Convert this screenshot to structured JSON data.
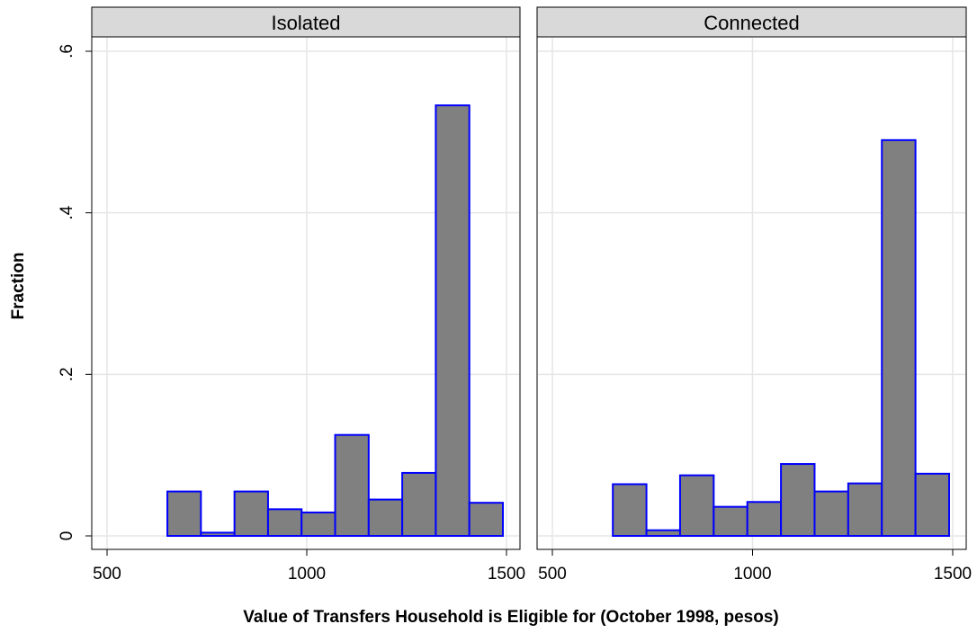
{
  "chart_data": {
    "type": "bar",
    "xlabel": "Value of Transfers Household is Eligible for (October 1998, pesos)",
    "ylabel": "Fraction",
    "xlim": [
      500,
      1500
    ],
    "ylim": [
      0,
      0.6
    ],
    "x_ticks": [
      500,
      1000,
      1500
    ],
    "y_ticks": [
      0,
      0.2,
      0.4,
      0.6
    ],
    "y_tick_labels": [
      "0",
      ".2",
      ".4",
      ".6"
    ],
    "grid": true,
    "colors": {
      "bar_fill": "#808080",
      "bar_edge": "#0000ff",
      "strip_bg": "#d9d9d9",
      "grid": "#e6e6e6"
    },
    "panels": [
      {
        "title": "Isolated",
        "bins": [
          {
            "x0": 651,
            "x1": 735,
            "value": 0.055
          },
          {
            "x0": 735,
            "x1": 819,
            "value": 0.004
          },
          {
            "x0": 819,
            "x1": 903,
            "value": 0.055
          },
          {
            "x0": 903,
            "x1": 987,
            "value": 0.033
          },
          {
            "x0": 987,
            "x1": 1071,
            "value": 0.029
          },
          {
            "x0": 1071,
            "x1": 1155,
            "value": 0.125
          },
          {
            "x0": 1155,
            "x1": 1239,
            "value": 0.045
          },
          {
            "x0": 1239,
            "x1": 1323,
            "value": 0.078
          },
          {
            "x0": 1323,
            "x1": 1407,
            "value": 0.533
          },
          {
            "x0": 1407,
            "x1": 1491,
            "value": 0.041
          }
        ]
      },
      {
        "title": "Connected",
        "bins": [
          {
            "x0": 651,
            "x1": 735,
            "value": 0.064
          },
          {
            "x0": 735,
            "x1": 819,
            "value": 0.007
          },
          {
            "x0": 819,
            "x1": 903,
            "value": 0.075
          },
          {
            "x0": 903,
            "x1": 987,
            "value": 0.036
          },
          {
            "x0": 987,
            "x1": 1071,
            "value": 0.042
          },
          {
            "x0": 1071,
            "x1": 1155,
            "value": 0.089
          },
          {
            "x0": 1155,
            "x1": 1239,
            "value": 0.055
          },
          {
            "x0": 1239,
            "x1": 1323,
            "value": 0.065
          },
          {
            "x0": 1323,
            "x1": 1407,
            "value": 0.49
          },
          {
            "x0": 1407,
            "x1": 1491,
            "value": 0.077
          }
        ]
      }
    ]
  }
}
